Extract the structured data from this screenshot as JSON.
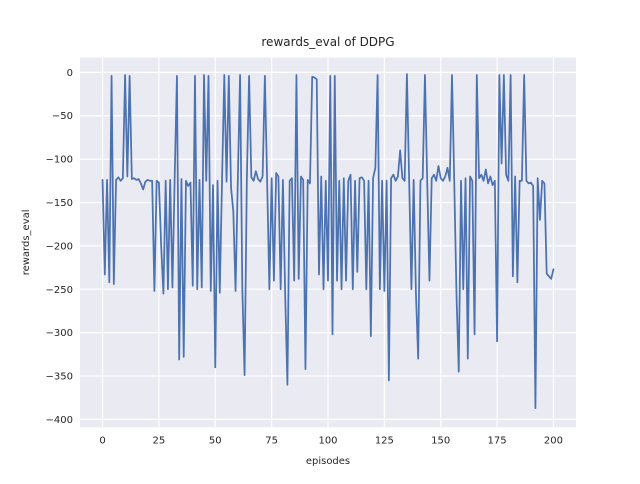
{
  "figure": {
    "title": "rewards_eval of DDPG"
  },
  "chart_data": {
    "type": "line",
    "title": "rewards_eval of DDPG",
    "xlabel": "episodes",
    "ylabel": "rewards_eval",
    "legend": null,
    "grid": true,
    "xlim": [
      -10,
      210
    ],
    "ylim": [
      -409,
      17
    ],
    "xticks": [
      0,
      25,
      50,
      75,
      100,
      125,
      150,
      175,
      200
    ],
    "yticks": [
      0,
      -50,
      -100,
      -150,
      -200,
      -250,
      -300,
      -350,
      -400
    ],
    "style": {
      "line_color": "#4c72b0",
      "axes_bg": "#eaeaf2",
      "grid_color": "#ffffff",
      "fig_bg": "#ffffff",
      "text_color": "#262626",
      "line_width": 1.75,
      "grid_width": 1.2
    },
    "series": [
      {
        "name": "rewards_eval",
        "x_start": 0,
        "x_step": 1,
        "values": [
          -124,
          -233,
          -124,
          -242,
          -4,
          -244,
          -124,
          -121,
          -125,
          -122,
          -3,
          -120,
          -4,
          -123,
          -122,
          -124,
          -123,
          -128,
          -135,
          -126,
          -124,
          -125,
          -125,
          -252,
          -125,
          -127,
          -200,
          -255,
          -125,
          -250,
          -124,
          -248,
          -120,
          -4,
          -331,
          -123,
          -328,
          -125,
          -131,
          -127,
          -246,
          -4,
          -250,
          -124,
          -248,
          -3,
          -125,
          -4,
          -252,
          -130,
          -340,
          -125,
          -254,
          -124,
          -3,
          -126,
          -4,
          -133,
          -160,
          -252,
          -124,
          -3,
          -250,
          -349,
          -123,
          -4,
          -121,
          -125,
          -114,
          -123,
          -126,
          -120,
          -4,
          -125,
          -250,
          -122,
          -240,
          -116,
          -120,
          -250,
          -124,
          -255,
          -360,
          -125,
          -122,
          -240,
          -3,
          -238,
          -120,
          -124,
          -342,
          -124,
          -128,
          -5,
          -6,
          -8,
          -233,
          -120,
          -250,
          -125,
          -240,
          -4,
          -302,
          -4,
          -240,
          -125,
          -250,
          -122,
          -240,
          -125,
          -118,
          -250,
          -125,
          -230,
          -122,
          -121,
          -125,
          -250,
          -125,
          -304,
          -122,
          -110,
          -3,
          -250,
          -125,
          -252,
          -125,
          -355,
          -122,
          -118,
          -125,
          -120,
          -90,
          -122,
          -125,
          -2,
          -125,
          -250,
          -124,
          -255,
          -330,
          -125,
          -122,
          -3,
          -125,
          -240,
          -122,
          -118,
          -125,
          -108,
          -122,
          -125,
          -120,
          -110,
          -125,
          -3,
          -126,
          -257,
          -345,
          -125,
          -250,
          -122,
          -330,
          -120,
          -125,
          -302,
          -3,
          -122,
          -118,
          -125,
          -112,
          -128,
          -120,
          -130,
          -125,
          -310,
          -3,
          -105,
          -3,
          -118,
          -125,
          -3,
          -235,
          -120,
          -242,
          -125,
          -125,
          -3,
          -125,
          -128,
          -127,
          -131,
          -387,
          -122,
          -170,
          -125,
          -128,
          -232,
          -235,
          -238,
          -227
        ]
      }
    ]
  }
}
